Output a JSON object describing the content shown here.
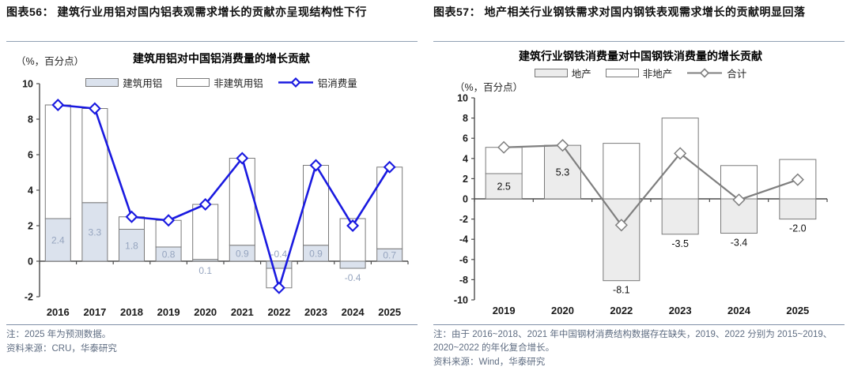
{
  "figures": [
    {
      "caption": "图表56：  建筑行业用铝对国内铝表观需求增长的贡献亦呈现结构性下行",
      "unit": "（%，百分点）",
      "note": "注：2025 年为预测数据。",
      "source": "资料来源：CRU，华泰研究"
    },
    {
      "caption": "图表57：  地产相关行业钢铁需求对国内钢铁表观需求增长的贡献明显回落",
      "unit": "（%，百分点）",
      "note": "注：由于 2016~2018、2021 年中国钢材消费结构数据存在缺失，2019、2022 分别为 2015~2019、2020~2022 的年化复合增长。",
      "source": "资料来源：Wind，华泰研究"
    }
  ],
  "chart_data": [
    {
      "type": "bar",
      "subtype": "stacked-bar-with-line",
      "title": "建筑用铝对中国铝消费量的增长贡献",
      "unit_label": "（%，百分点）",
      "categories": [
        "2016",
        "2017",
        "2018",
        "2019",
        "2020",
        "2021",
        "2022",
        "2023",
        "2024",
        "2025"
      ],
      "series": [
        {
          "name": "建筑用铝",
          "type": "bar",
          "fill": "#dbe2ed",
          "values": [
            2.4,
            3.3,
            1.8,
            0.8,
            0.1,
            0.9,
            -0.4,
            0.9,
            -0.4,
            0.7
          ]
        },
        {
          "name": "非建筑用铝",
          "type": "bar",
          "fill": "#ffffff",
          "values": [
            6.4,
            5.3,
            0.7,
            1.5,
            3.1,
            4.9,
            -1.1,
            4.5,
            2.4,
            4.6
          ]
        },
        {
          "name": "铝消费量",
          "type": "line",
          "color": "#1a1ae0",
          "values": [
            8.8,
            8.6,
            2.5,
            2.3,
            3.2,
            5.8,
            -1.5,
            5.4,
            2.0,
            5.3
          ]
        }
      ],
      "data_labels": [
        "2.4",
        "3.3",
        "1.8",
        "0.8",
        "0.1",
        "0.9",
        "-0.4",
        "0.9",
        "-0.4",
        "0.7"
      ],
      "label_placement": [
        "center",
        "center",
        "center",
        "center",
        "below-axis",
        "center",
        "above-axis",
        "center",
        "below-bar",
        "center"
      ],
      "label_color": "#96a5bf",
      "bar_border": "#7a7a7a",
      "axis_color": "#4d4d4d",
      "ylim": [
        -2,
        10
      ],
      "ytick_step": 2,
      "grid": false,
      "legend_position": "top-inside"
    },
    {
      "type": "bar",
      "subtype": "stacked-bar-with-line",
      "title": "建筑行业钢铁消费量对中国钢铁消费量的增长贡献",
      "unit_label": "（%，百分点）",
      "categories": [
        "2019",
        "2020",
        "2022",
        "2023",
        "2024",
        "2025"
      ],
      "series": [
        {
          "name": "地产",
          "type": "bar",
          "fill": "#ececec",
          "values": [
            2.5,
            5.3,
            -8.1,
            -3.5,
            -3.4,
            -2.0
          ]
        },
        {
          "name": "非地产",
          "type": "bar",
          "fill": "#ffffff",
          "values": [
            2.6,
            0.0,
            5.5,
            8.0,
            3.3,
            3.9
          ]
        },
        {
          "name": "合计",
          "type": "line",
          "color": "#7f7f7f",
          "values": [
            5.1,
            5.3,
            -2.6,
            4.5,
            -0.1,
            1.9
          ]
        }
      ],
      "data_labels": [
        "2.5",
        "5.3",
        "-8.1",
        "-3.5",
        "-3.4",
        "-2.0"
      ],
      "label_placement": [
        "center",
        "center",
        "below-bar",
        "below-bar",
        "below-bar",
        "below-bar"
      ],
      "label_color": "#111111",
      "bar_border": "#7a7a7a",
      "axis_color": "#4d4d4d",
      "ylim": [
        -10,
        10
      ],
      "ytick_step": 2,
      "grid": false,
      "legend_position": "top"
    }
  ]
}
